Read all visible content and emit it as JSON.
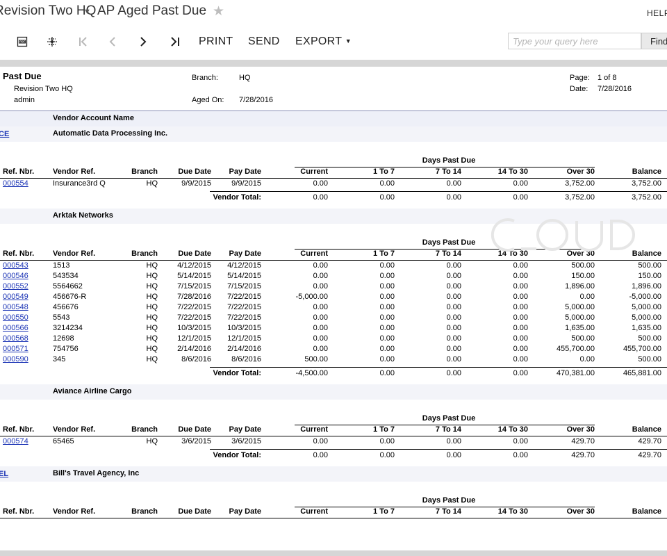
{
  "header": {
    "breadcrumb": "Revision Two HQ",
    "screen_title": "AP Aged Past Due",
    "help_label": "HELP"
  },
  "toolbar": {
    "print_label": "PRINT",
    "send_label": "SEND",
    "export_label": "EXPORT",
    "search_placeholder": "Type your query here",
    "find_label": "Find"
  },
  "report": {
    "title": "Past Due",
    "company": "Revision Two HQ",
    "user": "admin",
    "branch_label": "Branch:",
    "branch": "HQ",
    "aged_on_label": "Aged On:",
    "aged_on": "7/28/2016",
    "page_label": "Page:",
    "page": "1 of 8",
    "date_label": "Date:",
    "date": "7/28/2016",
    "vendor_account_header": "Vendor Account Name",
    "days_past_due_label": "Days Past Due",
    "columns": [
      "Ref. Nbr.",
      "Vendor Ref.",
      "Branch",
      "Due Date",
      "Pay Date",
      "Current",
      "1 To 7",
      "7 To 14",
      "14 To 30",
      "Over 30",
      "Balance"
    ],
    "vendor_total_label": "Vendor Total:"
  },
  "vendors": [
    {
      "code": "CE",
      "name": "Automatic Data Processing Inc.",
      "rows": [
        {
          "ref": "000554",
          "vref": "Insurance3rd Q",
          "branch": "HQ",
          "due": "9/9/2015",
          "pay": "9/9/2015",
          "current": "0.00",
          "d1_7": "0.00",
          "d7_14": "0.00",
          "d14_30": "0.00",
          "over30": "3,752.00",
          "balance": "3,752.00"
        }
      ],
      "total": {
        "current": "0.00",
        "d1_7": "0.00",
        "d7_14": "0.00",
        "d14_30": "0.00",
        "over30": "3,752.00",
        "balance": "3,752.00"
      }
    },
    {
      "code": "",
      "name": "Arktak Networks",
      "rows": [
        {
          "ref": "000543",
          "vref": "1513",
          "branch": "HQ",
          "due": "4/12/2015",
          "pay": "4/12/2015",
          "current": "0.00",
          "d1_7": "0.00",
          "d7_14": "0.00",
          "d14_30": "0.00",
          "over30": "500.00",
          "balance": "500.00"
        },
        {
          "ref": "000546",
          "vref": "543534",
          "branch": "HQ",
          "due": "5/14/2015",
          "pay": "5/14/2015",
          "current": "0.00",
          "d1_7": "0.00",
          "d7_14": "0.00",
          "d14_30": "0.00",
          "over30": "150.00",
          "balance": "150.00"
        },
        {
          "ref": "000552",
          "vref": "5564662",
          "branch": "HQ",
          "due": "7/15/2015",
          "pay": "7/15/2015",
          "current": "0.00",
          "d1_7": "0.00",
          "d7_14": "0.00",
          "d14_30": "0.00",
          "over30": "1,896.00",
          "balance": "1,896.00"
        },
        {
          "ref": "000549",
          "vref": "456676-R",
          "branch": "HQ",
          "due": "7/28/2016",
          "pay": "7/22/2015",
          "current": "-5,000.00",
          "d1_7": "0.00",
          "d7_14": "0.00",
          "d14_30": "0.00",
          "over30": "0.00",
          "balance": "-5,000.00"
        },
        {
          "ref": "000548",
          "vref": "456676",
          "branch": "HQ",
          "due": "7/22/2015",
          "pay": "7/22/2015",
          "current": "0.00",
          "d1_7": "0.00",
          "d7_14": "0.00",
          "d14_30": "0.00",
          "over30": "5,000.00",
          "balance": "5,000.00"
        },
        {
          "ref": "000550",
          "vref": "5543",
          "branch": "HQ",
          "due": "7/22/2015",
          "pay": "7/22/2015",
          "current": "0.00",
          "d1_7": "0.00",
          "d7_14": "0.00",
          "d14_30": "0.00",
          "over30": "5,000.00",
          "balance": "5,000.00"
        },
        {
          "ref": "000566",
          "vref": "3214234",
          "branch": "HQ",
          "due": "10/3/2015",
          "pay": "10/3/2015",
          "current": "0.00",
          "d1_7": "0.00",
          "d7_14": "0.00",
          "d14_30": "0.00",
          "over30": "1,635.00",
          "balance": "1,635.00"
        },
        {
          "ref": "000568",
          "vref": "12698",
          "branch": "HQ",
          "due": "12/1/2015",
          "pay": "12/1/2015",
          "current": "0.00",
          "d1_7": "0.00",
          "d7_14": "0.00",
          "d14_30": "0.00",
          "over30": "500.00",
          "balance": "500.00"
        },
        {
          "ref": "000571",
          "vref": "754756",
          "branch": "HQ",
          "due": "2/14/2016",
          "pay": "2/14/2016",
          "current": "0.00",
          "d1_7": "0.00",
          "d7_14": "0.00",
          "d14_30": "0.00",
          "over30": "455,700.00",
          "balance": "455,700.00"
        },
        {
          "ref": "000590",
          "vref": "345",
          "branch": "HQ",
          "due": "8/6/2016",
          "pay": "8/6/2016",
          "current": "500.00",
          "d1_7": "0.00",
          "d7_14": "0.00",
          "d14_30": "0.00",
          "over30": "0.00",
          "balance": "500.00"
        }
      ],
      "total": {
        "current": "-4,500.00",
        "d1_7": "0.00",
        "d7_14": "0.00",
        "d14_30": "0.00",
        "over30": "470,381.00",
        "balance": "465,881.00"
      }
    },
    {
      "code": "",
      "name": "Aviance Airline Cargo",
      "rows": [
        {
          "ref": "000574",
          "vref": "65465",
          "branch": "HQ",
          "due": "3/6/2015",
          "pay": "3/6/2015",
          "current": "0.00",
          "d1_7": "0.00",
          "d7_14": "0.00",
          "d14_30": "0.00",
          "over30": "429.70",
          "balance": "429.70"
        }
      ],
      "total": {
        "current": "0.00",
        "d1_7": "0.00",
        "d7_14": "0.00",
        "d14_30": "0.00",
        "over30": "429.70",
        "balance": "429.70"
      }
    },
    {
      "code": "EL",
      "name": "Bill's Travel Agency, Inc",
      "rows": [],
      "total": null
    }
  ]
}
